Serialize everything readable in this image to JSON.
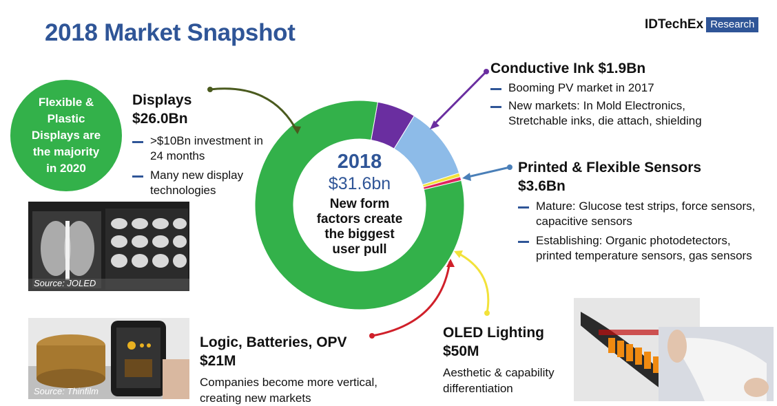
{
  "title": "2018 Market Snapshot",
  "logo": {
    "brand": "IDTechEx",
    "tag": "Research"
  },
  "badge": {
    "lines": [
      "Flexible &",
      "Plastic",
      "Displays are",
      "the majority",
      "in 2020"
    ]
  },
  "center": {
    "year": "2018",
    "total": "$31.6bn",
    "lines": [
      "New form",
      "factors create",
      "the biggest",
      "user pull"
    ]
  },
  "displays": {
    "title": "Displays",
    "value": "$26.0Bn",
    "bullets": [
      ">$10Bn investment in 24 months",
      "Many new display technologies"
    ],
    "photo_source": "Source: JOLED"
  },
  "conductive": {
    "heading": "Conductive Ink $1.9Bn",
    "bullets": [
      "Booming PV market in 2017",
      "New markets: In Mold Electronics, Stretchable inks, die attach, shielding"
    ]
  },
  "sensors": {
    "title": "Printed & Flexible Sensors",
    "value": "$3.6Bn",
    "bullets": [
      "Mature: Glucose test  strips, force sensors, capacitive sensors",
      "Establishing: Organic photodetectors, printed temperature sensors, gas sensors"
    ]
  },
  "logic": {
    "title": "Logic, Batteries, OPV",
    "value": "$21M",
    "desc": "Companies become more vertical, creating new markets",
    "photo_source": "Source: Thinfilm"
  },
  "oled": {
    "title": "OLED Lighting",
    "value": "$50M",
    "desc": "Aesthetic & capability differentiation"
  },
  "colors": {
    "displays": "#33b14a",
    "conductive": "#6a2ea0",
    "sensors": "#8dbbe8",
    "oled": "#f2e23a",
    "logic": "#e0245e",
    "title": "#2f5597"
  },
  "chart_data": {
    "type": "pie",
    "variant": "donut",
    "title": "2018 Market Snapshot",
    "total_label": "$31.6bn",
    "unit": "$M",
    "categories": [
      "Displays",
      "Conductive Ink",
      "Printed & Flexible Sensors",
      "OLED Lighting",
      "Logic, Batteries, OPV"
    ],
    "values": [
      26000,
      1900,
      3600,
      50,
      21
    ],
    "value_labels": [
      "$26.0Bn",
      "$1.9Bn",
      "$3.6Bn",
      "$50M",
      "$21M"
    ],
    "start_angle_deg": 10,
    "order": [
      "Conductive Ink",
      "Printed & Flexible Sensors",
      "OLED Lighting",
      "Logic, Batteries, OPV",
      "Displays"
    ]
  }
}
